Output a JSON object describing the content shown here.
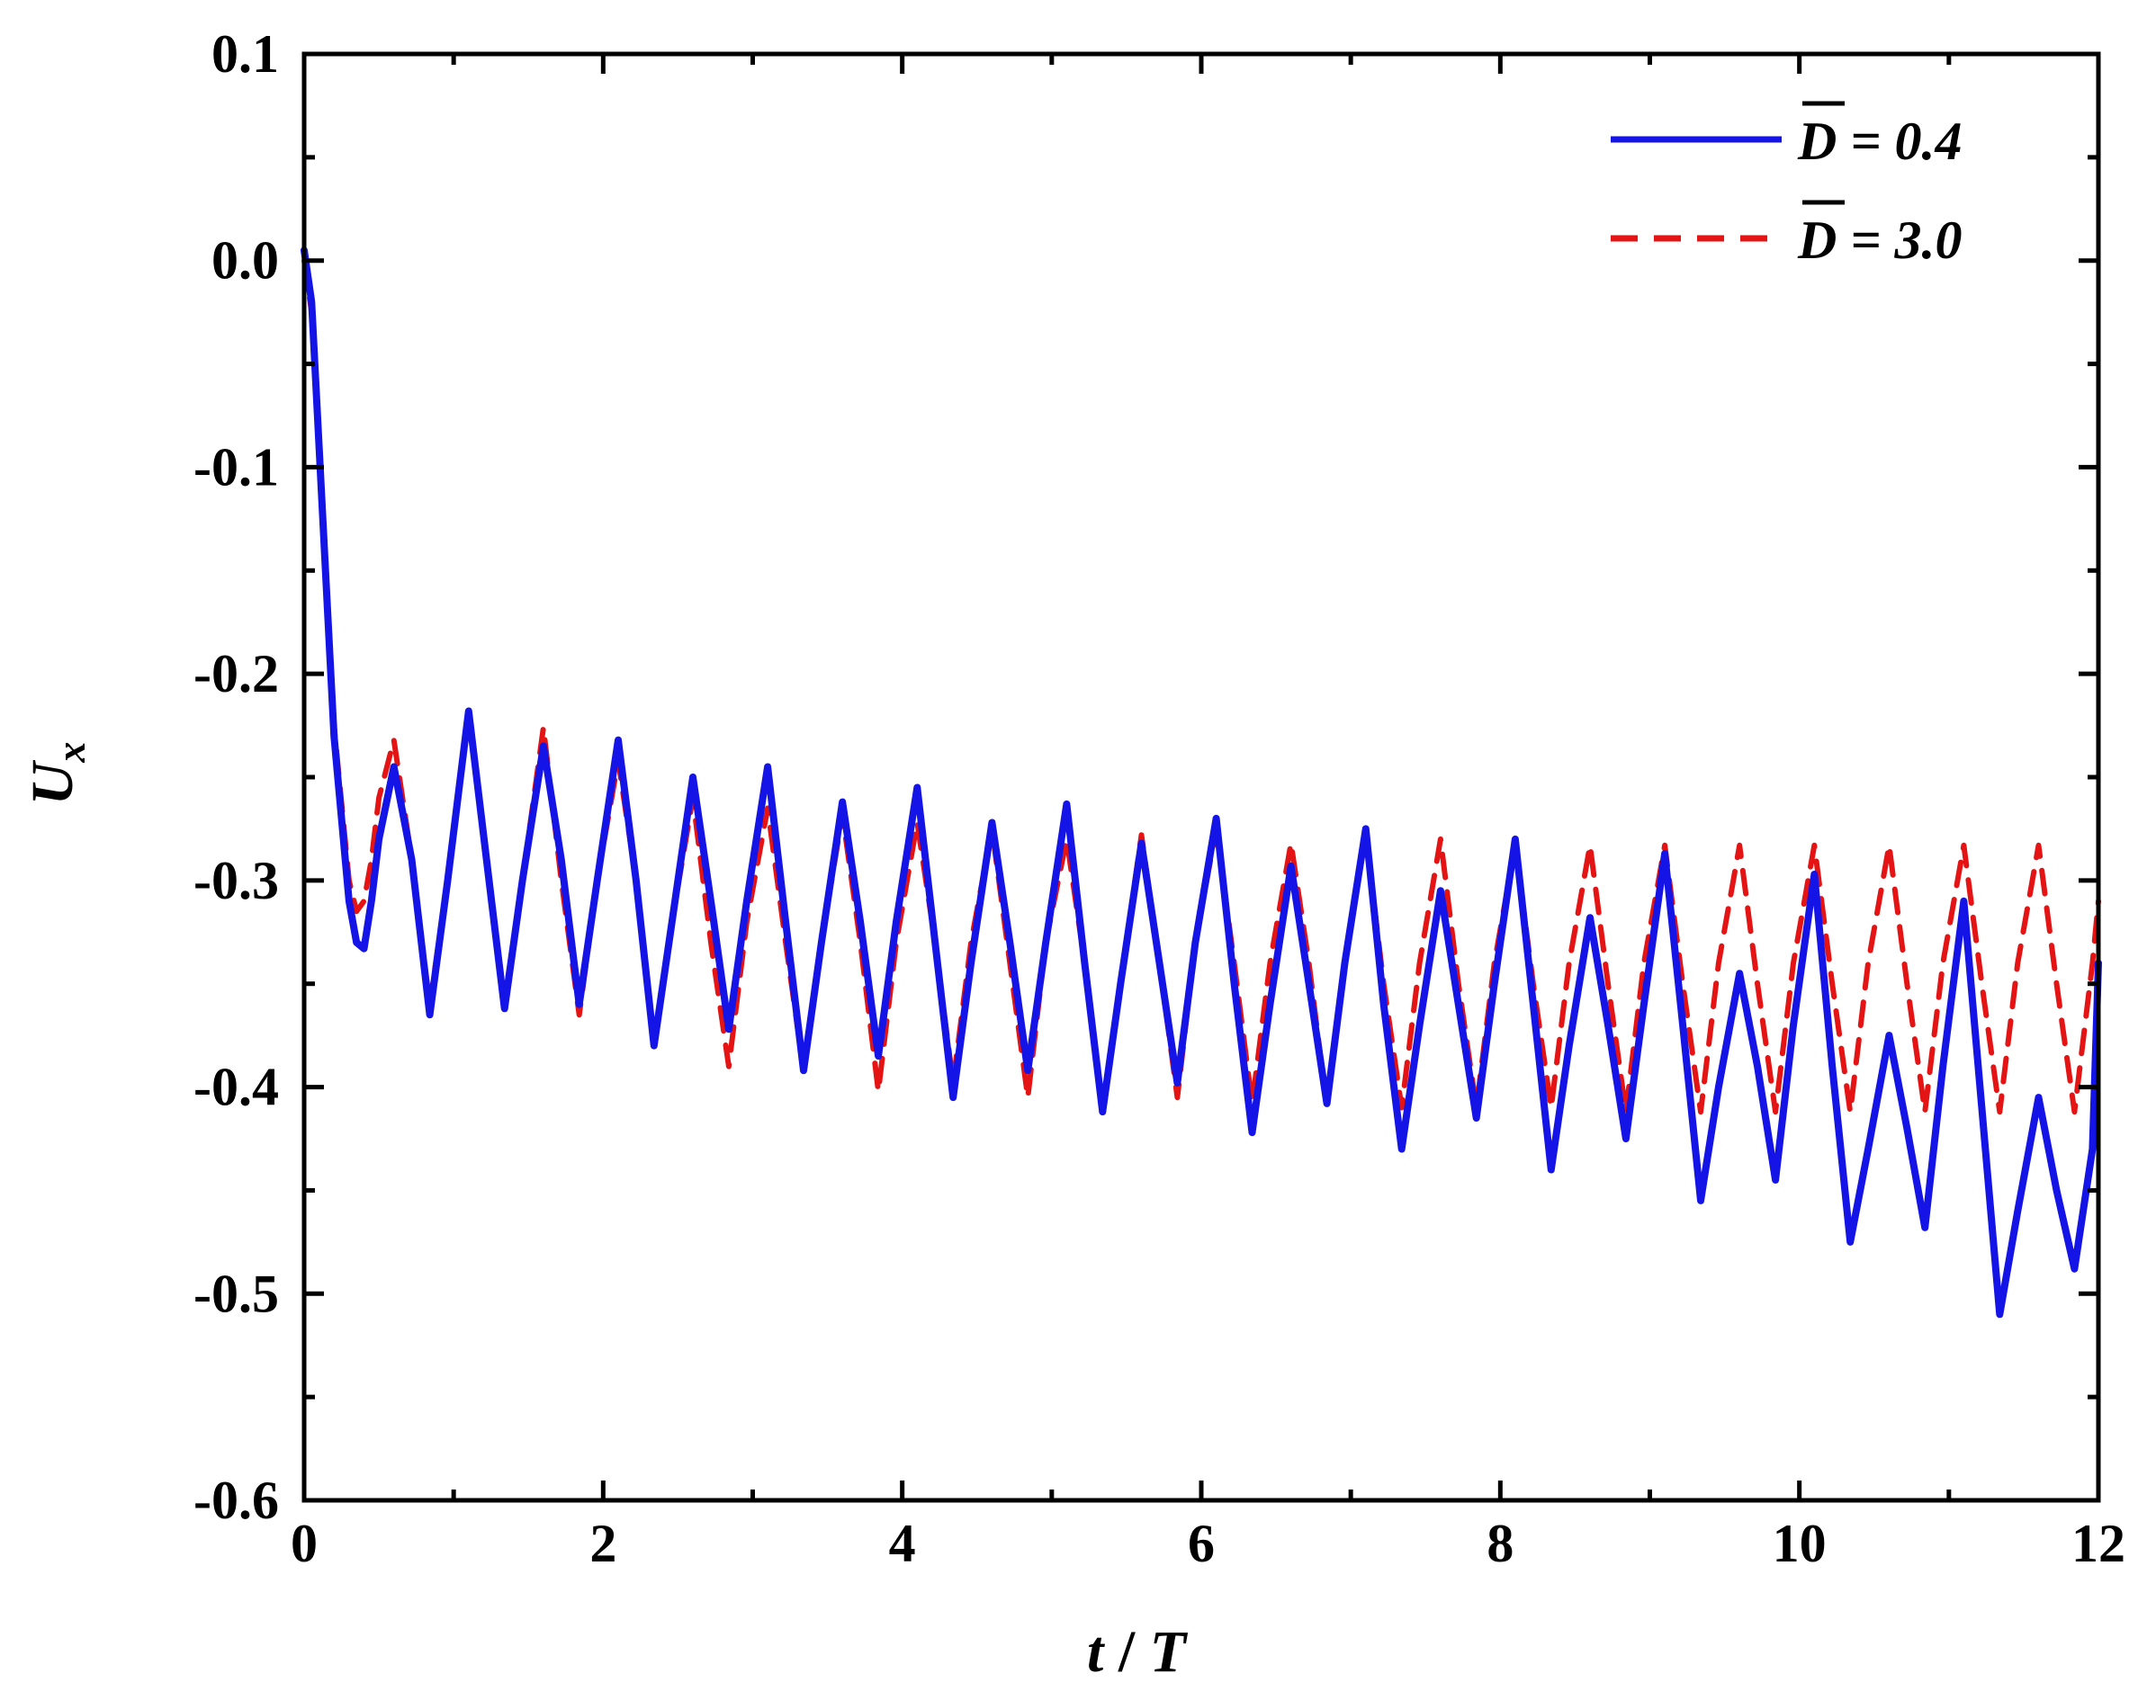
{
  "chart_data": {
    "type": "line",
    "title": "",
    "xlabel": {
      "var": "t",
      "sep": " / ",
      "den": "T"
    },
    "ylabel": {
      "var": "U",
      "sub": "x"
    },
    "xlim": [
      0,
      12
    ],
    "ylim": [
      -0.6,
      0.1
    ],
    "xticks": [
      0,
      2,
      4,
      6,
      8,
      10,
      12
    ],
    "xtick_labels": [
      "0",
      "2",
      "4",
      "6",
      "8",
      "10",
      "12"
    ],
    "yticks": [
      0.1,
      0.0,
      -0.1,
      -0.2,
      -0.3,
      -0.4,
      -0.5,
      -0.6
    ],
    "ytick_labels": [
      "0.1",
      "0.0",
      "-0.1",
      "-0.2",
      "-0.3",
      "-0.4",
      "-0.5",
      "-0.6"
    ],
    "grid": false,
    "legend_position": "top-right",
    "series": [
      {
        "name": "D = 0.4",
        "legend_var": "D",
        "legend_value": " = 0.4",
        "color": "#1414e6",
        "style": "solid",
        "x": [
          0.0,
          0.05,
          0.1,
          0.2,
          0.3,
          0.35,
          0.4,
          0.45,
          0.5,
          0.6,
          0.72,
          0.84,
          0.96,
          1.1,
          1.22,
          1.34,
          1.46,
          1.6,
          1.72,
          1.84,
          1.96,
          2.1,
          2.22,
          2.34,
          2.46,
          2.6,
          2.72,
          2.84,
          2.96,
          3.1,
          3.22,
          3.34,
          3.46,
          3.6,
          3.72,
          3.84,
          3.96,
          4.1,
          4.22,
          4.34,
          4.46,
          4.6,
          4.72,
          4.84,
          4.96,
          5.1,
          5.22,
          5.34,
          5.46,
          5.6,
          5.72,
          5.84,
          5.96,
          6.1,
          6.22,
          6.34,
          6.46,
          6.6,
          6.72,
          6.84,
          6.96,
          7.1,
          7.22,
          7.34,
          7.46,
          7.6,
          7.72,
          7.84,
          7.96,
          8.1,
          8.22,
          8.34,
          8.46,
          8.6,
          8.72,
          8.84,
          8.96,
          9.1,
          9.22,
          9.34,
          9.46,
          9.6,
          9.72,
          9.84,
          9.96,
          10.1,
          10.22,
          10.34,
          10.46,
          10.6,
          10.72,
          10.84,
          10.96,
          11.1,
          11.22,
          11.34,
          11.46,
          11.6,
          11.72,
          11.84,
          11.96,
          12.0
        ],
        "y": [
          0.005,
          -0.02,
          -0.09,
          -0.23,
          -0.31,
          -0.33,
          -0.333,
          -0.31,
          -0.28,
          -0.245,
          -0.29,
          -0.365,
          -0.3,
          -0.218,
          -0.29,
          -0.362,
          -0.3,
          -0.235,
          -0.29,
          -0.36,
          -0.3,
          -0.232,
          -0.3,
          -0.38,
          -0.32,
          -0.25,
          -0.31,
          -0.372,
          -0.31,
          -0.245,
          -0.32,
          -0.392,
          -0.33,
          -0.262,
          -0.32,
          -0.385,
          -0.32,
          -0.255,
          -0.33,
          -0.405,
          -0.34,
          -0.272,
          -0.33,
          -0.392,
          -0.33,
          -0.263,
          -0.34,
          -0.412,
          -0.35,
          -0.282,
          -0.34,
          -0.398,
          -0.33,
          -0.27,
          -0.35,
          -0.422,
          -0.36,
          -0.293,
          -0.35,
          -0.408,
          -0.34,
          -0.275,
          -0.36,
          -0.43,
          -0.37,
          -0.305,
          -0.36,
          -0.415,
          -0.35,
          -0.28,
          -0.36,
          -0.44,
          -0.38,
          -0.318,
          -0.37,
          -0.425,
          -0.36,
          -0.287,
          -0.37,
          -0.455,
          -0.4,
          -0.345,
          -0.39,
          -0.445,
          -0.37,
          -0.297,
          -0.39,
          -0.475,
          -0.43,
          -0.375,
          -0.42,
          -0.468,
          -0.39,
          -0.31,
          -0.41,
          -0.51,
          -0.46,
          -0.405,
          -0.45,
          -0.488,
          -0.43,
          -0.34
        ]
      },
      {
        "name": "D = 3.0",
        "legend_var": "D",
        "legend_value": " = 3.0",
        "color": "#e51414",
        "style": "dashed",
        "x": [
          0.0,
          0.05,
          0.1,
          0.2,
          0.3,
          0.35,
          0.4,
          0.45,
          0.5,
          0.6,
          0.72,
          0.84,
          0.96,
          1.1,
          1.22,
          1.34,
          1.46,
          1.6,
          1.72,
          1.84,
          1.96,
          2.1,
          2.22,
          2.34,
          2.46,
          2.6,
          2.72,
          2.84,
          2.96,
          3.1,
          3.22,
          3.34,
          3.46,
          3.6,
          3.72,
          3.84,
          3.96,
          4.1,
          4.22,
          4.34,
          4.46,
          4.6,
          4.72,
          4.84,
          4.96,
          5.1,
          5.22,
          5.34,
          5.46,
          5.6,
          5.72,
          5.84,
          5.96,
          6.1,
          6.22,
          6.34,
          6.46,
          6.6,
          6.72,
          6.84,
          6.96,
          7.1,
          7.22,
          7.34,
          7.46,
          7.6,
          7.72,
          7.84,
          7.96,
          8.1,
          8.22,
          8.34,
          8.46,
          8.6,
          8.72,
          8.84,
          8.96,
          9.1,
          9.22,
          9.34,
          9.46,
          9.6,
          9.72,
          9.84,
          9.96,
          10.1,
          10.22,
          10.34,
          10.46,
          10.6,
          10.72,
          10.84,
          10.96,
          11.1,
          11.22,
          11.34,
          11.46,
          11.6,
          11.72,
          11.84,
          11.96,
          12.0
        ],
        "y": [
          0.0,
          -0.025,
          -0.095,
          -0.225,
          -0.3,
          -0.315,
          -0.31,
          -0.29,
          -0.26,
          -0.232,
          -0.29,
          -0.36,
          -0.3,
          -0.22,
          -0.29,
          -0.358,
          -0.3,
          -0.226,
          -0.3,
          -0.365,
          -0.3,
          -0.242,
          -0.3,
          -0.38,
          -0.32,
          -0.26,
          -0.33,
          -0.39,
          -0.32,
          -0.265,
          -0.33,
          -0.392,
          -0.33,
          -0.268,
          -0.33,
          -0.402,
          -0.33,
          -0.272,
          -0.33,
          -0.398,
          -0.33,
          -0.275,
          -0.34,
          -0.405,
          -0.33,
          -0.28,
          -0.34,
          -0.41,
          -0.35,
          -0.278,
          -0.34,
          -0.405,
          -0.33,
          -0.275,
          -0.34,
          -0.408,
          -0.34,
          -0.282,
          -0.34,
          -0.41,
          -0.34,
          -0.278,
          -0.35,
          -0.41,
          -0.34,
          -0.28,
          -0.35,
          -0.41,
          -0.34,
          -0.283,
          -0.35,
          -0.41,
          -0.34,
          -0.283,
          -0.35,
          -0.412,
          -0.34,
          -0.283,
          -0.35,
          -0.412,
          -0.34,
          -0.283,
          -0.35,
          -0.412,
          -0.34,
          -0.283,
          -0.35,
          -0.412,
          -0.34,
          -0.283,
          -0.35,
          -0.412,
          -0.34,
          -0.283,
          -0.35,
          -0.412,
          -0.34,
          -0.283,
          -0.35,
          -0.412,
          -0.34,
          -0.31
        ]
      }
    ]
  }
}
